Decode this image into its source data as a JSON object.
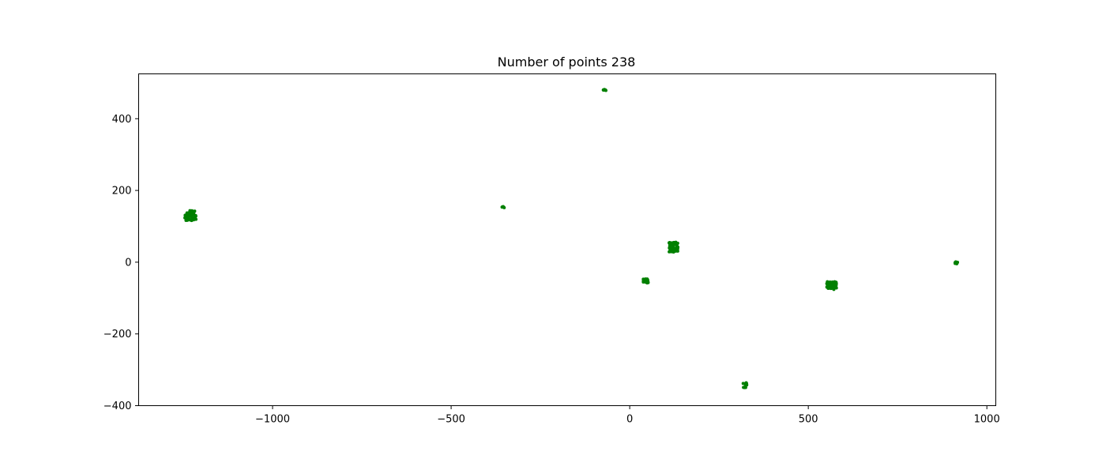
{
  "chart_data": {
    "type": "scatter",
    "title": "Number of points 238",
    "xlabel": "",
    "ylabel": "",
    "xlim": [
      -1375,
      1025
    ],
    "ylim": [
      -400,
      525
    ],
    "xticks": [
      -1000,
      -500,
      0,
      500,
      1000
    ],
    "xtick_labels": [
      "−1000",
      "−500",
      "0",
      "500",
      "1000"
    ],
    "yticks": [
      -400,
      -200,
      0,
      200,
      400
    ],
    "ytick_labels": [
      "−400",
      "−200",
      "0",
      "200",
      "400"
    ],
    "grid": false,
    "point_color": "#008000",
    "clusters": [
      {
        "center": [
          -1230,
          130
        ],
        "spread": [
          16,
          14
        ],
        "count": 55
      },
      {
        "center": [
          -355,
          153
        ],
        "spread": [
          4,
          2
        ],
        "count": 6
      },
      {
        "center": [
          -70,
          480
        ],
        "spread": [
          4,
          2
        ],
        "count": 6
      },
      {
        "center": [
          45,
          -52
        ],
        "spread": [
          7,
          6
        ],
        "count": 28
      },
      {
        "center": [
          123,
          42
        ],
        "spread": [
          13,
          14
        ],
        "count": 52
      },
      {
        "center": [
          565,
          -65
        ],
        "spread": [
          14,
          11
        ],
        "count": 70
      },
      {
        "center": [
          915,
          -2
        ],
        "spread": [
          4,
          3
        ],
        "count": 8
      },
      {
        "center": [
          323,
          -343
        ],
        "spread": [
          6,
          7
        ],
        "count": 13
      }
    ]
  }
}
